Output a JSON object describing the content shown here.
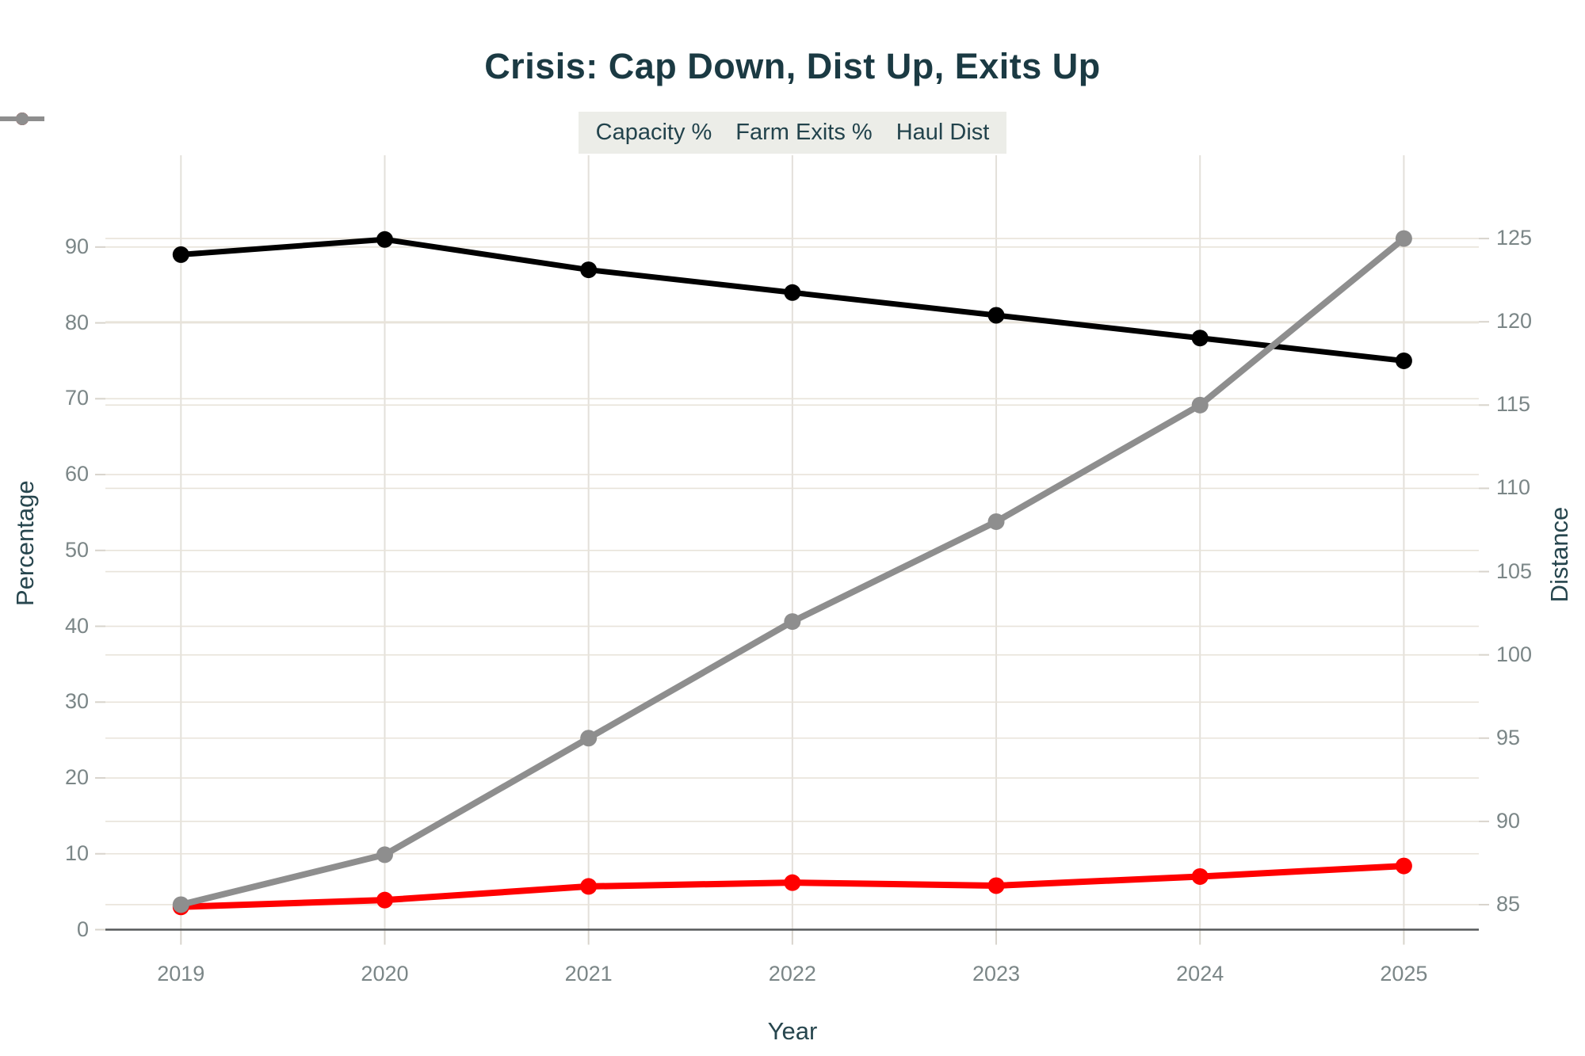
{
  "chart_data": {
    "type": "line",
    "title": "Crisis: Cap Down, Dist Up, Exits Up",
    "xlabel": "Year",
    "ylabel_left": "Percentage",
    "ylabel_right": "Distance",
    "categories": [
      2019,
      2020,
      2021,
      2022,
      2023,
      2024,
      2025
    ],
    "series": [
      {
        "name": "Capacity %",
        "axis": "left",
        "color": "#000000",
        "values": [
          89,
          91,
          87,
          84,
          81,
          78,
          75
        ]
      },
      {
        "name": "Farm Exits %",
        "axis": "left",
        "color": "#ff0000",
        "values": [
          3,
          3.9,
          5.7,
          6.2,
          5.8,
          7,
          8.4
        ]
      },
      {
        "name": "Haul Dist",
        "axis": "right",
        "color": "#8e8e8e",
        "values": [
          85,
          88,
          95,
          102,
          108,
          115,
          125
        ]
      }
    ],
    "left_ticks": [
      0,
      10,
      20,
      30,
      40,
      50,
      60,
      70,
      80,
      90
    ],
    "right_ticks": [
      85,
      90,
      95,
      100,
      105,
      110,
      115,
      120,
      125
    ],
    "ylim_left": [
      0,
      102.1
    ],
    "ylim_right": [
      83.5,
      130.0
    ],
    "grid": true,
    "legend_position": "top"
  },
  "colors": {
    "title_text": "#1b3a43",
    "axis_title_text": "#27464e",
    "legend_text": "#22434c",
    "tick_text": "#7b8687",
    "grid_horizontal": "#e8e3da",
    "grid_vertical": "#e3e0da",
    "tick_mark": "#d8d4cc",
    "axis_line": "#56585a",
    "legend_bg": "#ecede8"
  }
}
